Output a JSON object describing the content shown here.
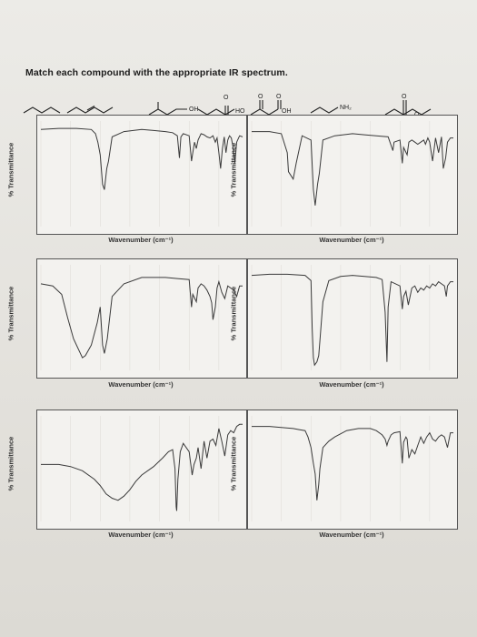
{
  "heading": "Match each compound with the appropriate IR spectrum.",
  "structure_labels": {
    "s4_oh": "OH",
    "s5_ho": "HO",
    "s5_oh": "OH",
    "s6_nh2": "NH₂",
    "s7_o": "O",
    "s4_o": "O",
    "s5_o1": "O",
    "s5_o2": "O"
  },
  "colors": {
    "line": "#3a3a3a",
    "frame": "#555555",
    "paper": "#f3f2ef"
  },
  "chart_data": [
    {
      "type": "line",
      "xlabel": "Wavenumber (cm⁻¹)",
      "ylabel": "% Transmittance",
      "xlim": [
        4000,
        600
      ],
      "ylim": [
        0,
        100
      ],
      "x": [
        4000,
        3700,
        3400,
        3150,
        3080,
        3040,
        3000,
        2960,
        2930,
        2890,
        2860,
        2800,
        2600,
        2300,
        2100,
        1900,
        1780,
        1700,
        1665,
        1640,
        1600,
        1500,
        1460,
        1440,
        1410,
        1380,
        1350,
        1300,
        1250,
        1200,
        1150,
        1100,
        1060,
        1030,
        1000,
        970,
        940,
        910,
        880,
        850,
        820,
        790,
        760,
        730,
        700,
        650,
        600
      ],
      "y": [
        92,
        93,
        93,
        92,
        88,
        80,
        68,
        40,
        35,
        55,
        62,
        85,
        90,
        92,
        91,
        90,
        89,
        86,
        65,
        85,
        88,
        86,
        62,
        70,
        80,
        74,
        82,
        88,
        87,
        85,
        84,
        86,
        80,
        84,
        70,
        55,
        74,
        85,
        70,
        82,
        86,
        84,
        75,
        60,
        80,
        86,
        85
      ]
    },
    {
      "type": "line",
      "xlabel": "Wavenumber (cm⁻¹)",
      "ylabel": "% Transmittance",
      "xlim": [
        4000,
        600
      ],
      "ylim": [
        0,
        100
      ],
      "x": [
        4000,
        3700,
        3500,
        3400,
        3380,
        3300,
        3250,
        3150,
        3000,
        2960,
        2930,
        2890,
        2860,
        2800,
        2600,
        2300,
        2100,
        1900,
        1700,
        1620,
        1600,
        1500,
        1460,
        1440,
        1380,
        1350,
        1300,
        1250,
        1200,
        1150,
        1100,
        1070,
        1030,
        1000,
        950,
        900,
        850,
        800,
        770,
        730,
        700,
        650,
        600
      ],
      "y": [
        90,
        90,
        88,
        70,
        52,
        45,
        60,
        86,
        82,
        35,
        20,
        40,
        50,
        82,
        86,
        88,
        87,
        86,
        85,
        72,
        80,
        82,
        60,
        75,
        68,
        80,
        82,
        80,
        78,
        80,
        82,
        78,
        84,
        80,
        62,
        84,
        70,
        85,
        55,
        65,
        80,
        84,
        84
      ]
    },
    {
      "type": "line",
      "xlabel": "Wavenumber (cm⁻¹)",
      "ylabel": "% Transmittance",
      "xlim": [
        4000,
        600
      ],
      "ylim": [
        0,
        100
      ],
      "x": [
        4000,
        3800,
        3650,
        3550,
        3450,
        3350,
        3300,
        3250,
        3150,
        3050,
        3000,
        2960,
        2930,
        2880,
        2860,
        2800,
        2600,
        2300,
        2100,
        1900,
        1700,
        1500,
        1460,
        1440,
        1380,
        1350,
        1300,
        1250,
        1200,
        1150,
        1120,
        1100,
        1060,
        1030,
        1000,
        950,
        900,
        850,
        800,
        750,
        700,
        650,
        600
      ],
      "y": [
        82,
        80,
        72,
        50,
        30,
        18,
        12,
        14,
        24,
        45,
        60,
        24,
        16,
        30,
        40,
        70,
        82,
        88,
        88,
        88,
        87,
        86,
        60,
        72,
        65,
        78,
        82,
        80,
        76,
        70,
        64,
        48,
        60,
        78,
        84,
        74,
        68,
        80,
        78,
        76,
        70,
        80,
        80
      ]
    },
    {
      "type": "line",
      "xlabel": "Wavenumber (cm⁻¹)",
      "ylabel": "% Transmittance",
      "xlim": [
        4000,
        600
      ],
      "ylim": [
        0,
        100
      ],
      "x": [
        4000,
        3700,
        3400,
        3100,
        3000,
        2980,
        2960,
        2940,
        2900,
        2870,
        2850,
        2800,
        2700,
        2500,
        2300,
        2100,
        1900,
        1800,
        1750,
        1720,
        1700,
        1650,
        1500,
        1460,
        1440,
        1400,
        1360,
        1300,
        1250,
        1200,
        1150,
        1100,
        1050,
        1000,
        950,
        900,
        850,
        800,
        750,
        720,
        700,
        650,
        600
      ],
      "y": [
        90,
        91,
        91,
        90,
        85,
        40,
        12,
        5,
        8,
        14,
        28,
        65,
        85,
        89,
        90,
        89,
        88,
        86,
        55,
        8,
        60,
        84,
        80,
        58,
        70,
        75,
        62,
        78,
        80,
        74,
        78,
        76,
        80,
        78,
        82,
        80,
        84,
        82,
        80,
        70,
        80,
        84,
        84
      ]
    },
    {
      "type": "line",
      "xlabel": "Wavenumber (cm⁻¹)",
      "ylabel": "% Transmittance",
      "xlim": [
        4000,
        600
      ],
      "ylim": [
        0,
        100
      ],
      "x": [
        4000,
        3700,
        3500,
        3300,
        3100,
        3000,
        2900,
        2800,
        2700,
        2600,
        2500,
        2400,
        2300,
        2100,
        1950,
        1850,
        1780,
        1740,
        1720,
        1710,
        1690,
        1650,
        1600,
        1500,
        1450,
        1420,
        1380,
        1350,
        1300,
        1250,
        1200,
        1150,
        1100,
        1050,
        1000,
        950,
        900,
        850,
        800,
        750,
        700,
        650,
        600
      ],
      "y": [
        54,
        54,
        52,
        48,
        40,
        34,
        26,
        22,
        20,
        24,
        30,
        38,
        44,
        52,
        60,
        66,
        68,
        50,
        14,
        10,
        40,
        66,
        74,
        66,
        44,
        54,
        60,
        70,
        50,
        76,
        60,
        76,
        78,
        72,
        88,
        76,
        62,
        82,
        86,
        84,
        90,
        92,
        92
      ]
    },
    {
      "type": "line",
      "xlabel": "Wavenumber (cm⁻¹)",
      "ylabel": "% Transmittance",
      "xlim": [
        4000,
        600
      ],
      "ylim": [
        0,
        100
      ],
      "x": [
        4000,
        3700,
        3500,
        3300,
        3200,
        3100,
        3050,
        3000,
        2960,
        2930,
        2900,
        2870,
        2850,
        2800,
        2700,
        2600,
        2400,
        2200,
        2000,
        1900,
        1800,
        1750,
        1720,
        1700,
        1650,
        1600,
        1500,
        1460,
        1440,
        1400,
        1380,
        1350,
        1300,
        1250,
        1200,
        1150,
        1100,
        1050,
        1000,
        950,
        900,
        850,
        800,
        750,
        700,
        650,
        600
      ],
      "y": [
        90,
        90,
        89,
        88,
        87,
        86,
        80,
        70,
        55,
        45,
        20,
        35,
        50,
        70,
        76,
        80,
        86,
        88,
        88,
        86,
        82,
        78,
        72,
        76,
        82,
        84,
        85,
        55,
        75,
        80,
        78,
        60,
        68,
        64,
        72,
        80,
        74,
        80,
        84,
        78,
        76,
        80,
        82,
        80,
        70,
        84,
        84
      ]
    }
  ]
}
